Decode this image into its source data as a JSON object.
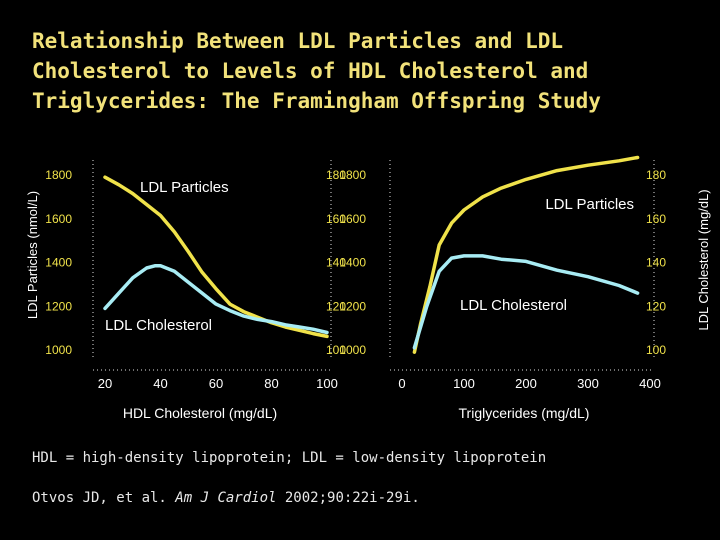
{
  "title": "Relationship Between LDL Particles and LDL\nCholesterol to Levels of HDL Cholesterol and\nTriglycerides:  The Framingham Offspring Study",
  "left_axis_label": "LDL Particles  (nmol/L)",
  "right_axis_label": "LDL Cholesterol  (mg/dL)",
  "footnote": "HDL = high-density lipoprotein; LDL = low-density lipoprotein",
  "citation": {
    "authors": "Otvos JD, et al. ",
    "journal": "Am J Cardiol",
    "details": " 2002;90:22i-29i."
  },
  "colors": {
    "background": "#000000",
    "title": "#f2e27a",
    "particles_line": "#f0e24a",
    "cholesterol_line": "#a8ecf4",
    "axis": "#e0e0e0",
    "tick_label": "#f0e24a",
    "label_text": "#ffffff"
  },
  "chart_data": [
    {
      "type": "line",
      "xlabel": "HDL Cholesterol (mg/dL)",
      "x_ticks": [
        "20",
        "40",
        "60",
        "80",
        "100"
      ],
      "xlim": [
        20,
        100
      ],
      "y_left": {
        "ticks": [
          "1000",
          "1200",
          "1400",
          "1600",
          "1800"
        ],
        "ylim": [
          1000,
          1800
        ]
      },
      "y_right": {
        "ticks": [
          "100",
          "120",
          "140",
          "160",
          "180"
        ],
        "ylim": [
          100,
          180
        ]
      },
      "series": [
        {
          "name": "LDL Particles",
          "axis": "left",
          "x": [
            20,
            25,
            30,
            35,
            40,
            45,
            50,
            55,
            60,
            65,
            70,
            75,
            80,
            85,
            90,
            95,
            100
          ],
          "values": [
            1790,
            1755,
            1715,
            1665,
            1615,
            1540,
            1450,
            1355,
            1280,
            1210,
            1175,
            1150,
            1125,
            1105,
            1090,
            1075,
            1062
          ]
        },
        {
          "name": "LDL Cholesterol",
          "axis": "right",
          "x": [
            20,
            25,
            30,
            35,
            38,
            40,
            45,
            50,
            55,
            60,
            65,
            70,
            75,
            80,
            85,
            90,
            95,
            100
          ],
          "values": [
            119,
            126,
            133,
            137.5,
            138.5,
            138.5,
            136,
            131,
            126,
            121,
            118,
            115.5,
            114,
            113,
            111.5,
            110.5,
            109.5,
            108
          ]
        }
      ]
    },
    {
      "type": "line",
      "xlabel": "Triglycerides (mg/dL)",
      "x_ticks": [
        "0",
        "100",
        "200",
        "300",
        "400"
      ],
      "xlim": [
        0,
        400
      ],
      "y_left": {
        "ticks": [
          "1000",
          "1200",
          "1400",
          "1600",
          "1800"
        ],
        "ylim": [
          1000,
          1800
        ]
      },
      "y_right": {
        "ticks": [
          "100",
          "120",
          "140",
          "160",
          "180"
        ],
        "ylim": [
          100,
          180
        ]
      },
      "series": [
        {
          "name": "LDL Particles",
          "axis": "left",
          "x": [
            20,
            30,
            45,
            60,
            80,
            100,
            130,
            160,
            200,
            250,
            300,
            350,
            380
          ],
          "values": [
            990,
            1120,
            1290,
            1480,
            1580,
            1640,
            1700,
            1740,
            1780,
            1820,
            1845,
            1865,
            1880
          ]
        },
        {
          "name": "LDL Cholesterol",
          "axis": "right",
          "x": [
            20,
            40,
            60,
            80,
            100,
            130,
            160,
            200,
            250,
            300,
            350,
            380
          ],
          "values": [
            101,
            120,
            136,
            142,
            143,
            143,
            141.5,
            140.5,
            136.5,
            133.5,
            129.5,
            126
          ]
        }
      ]
    }
  ]
}
